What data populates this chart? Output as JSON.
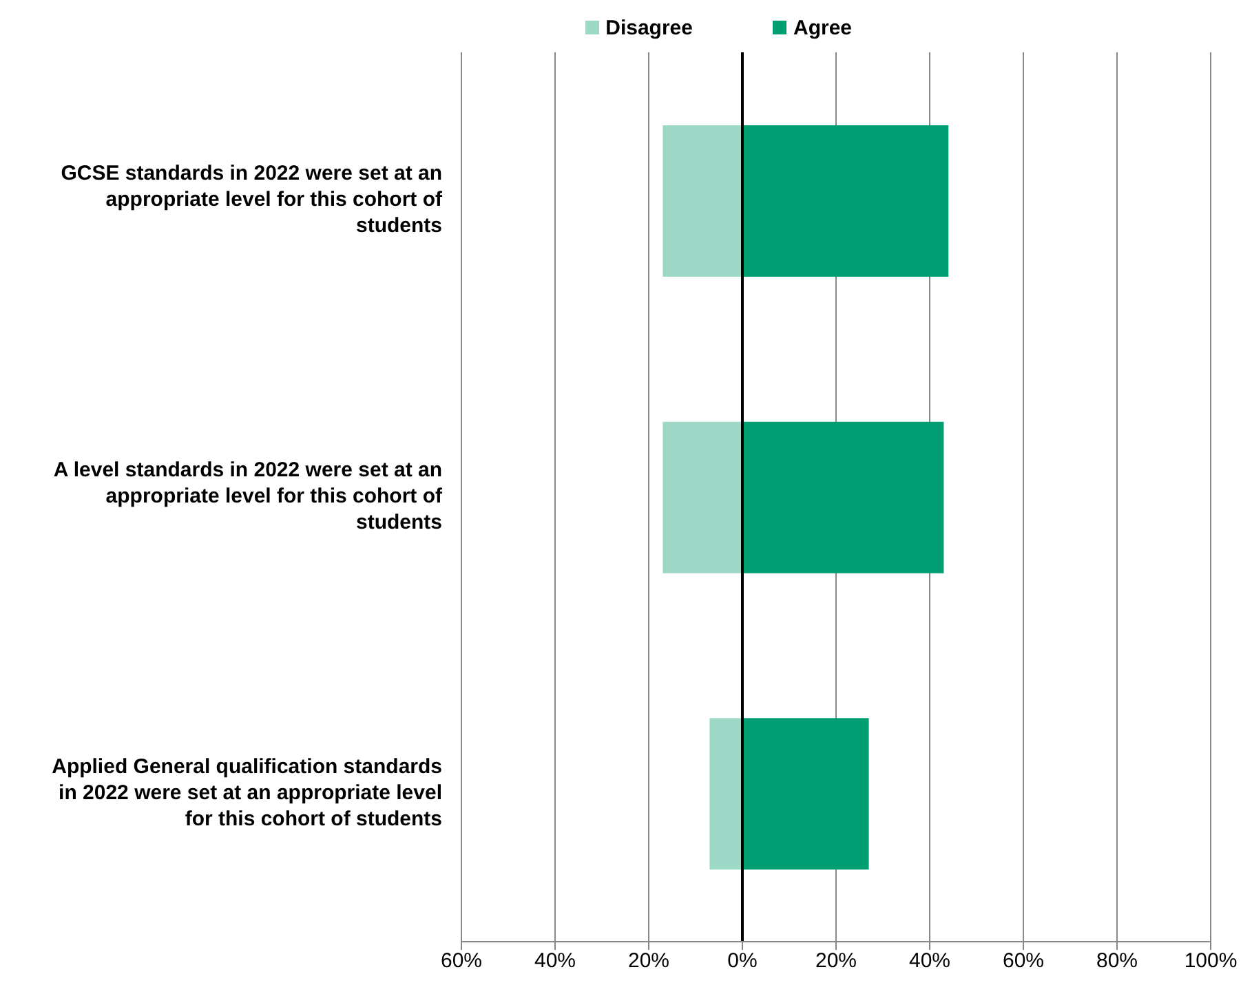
{
  "chart_data": {
    "type": "bar",
    "orientation": "horizontal",
    "stacked": true,
    "categories": [
      "GCSE standards in 2022 were set at an appropriate level for this cohort of students",
      "A level standards in 2022 were set at an appropriate level for this cohort of students",
      "Applied General qualification standards in 2022 were set at an appropriate level for this cohort of students"
    ],
    "series": [
      {
        "name": "Disagree",
        "color": "#9dd9c6",
        "values": [
          -17,
          -17,
          -7
        ]
      },
      {
        "name": "Agree",
        "color": "#009f73",
        "values": [
          44,
          43,
          27
        ]
      }
    ],
    "xlim": [
      -60,
      100
    ],
    "xticks": [
      {
        "value": -60,
        "label": "60%"
      },
      {
        "value": -40,
        "label": "40%"
      },
      {
        "value": -20,
        "label": "20%"
      },
      {
        "value": 0,
        "label": "0%"
      },
      {
        "value": 20,
        "label": "20%"
      },
      {
        "value": 40,
        "label": "40%"
      },
      {
        "value": 60,
        "label": "60%"
      },
      {
        "value": 80,
        "label": "80%"
      },
      {
        "value": 100,
        "label": "100%"
      }
    ],
    "grid": "x",
    "legend": "top"
  }
}
